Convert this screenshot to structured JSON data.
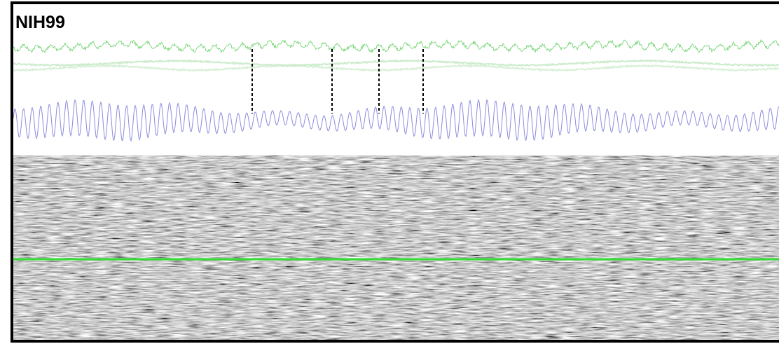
{
  "title": "NIH99"
}
